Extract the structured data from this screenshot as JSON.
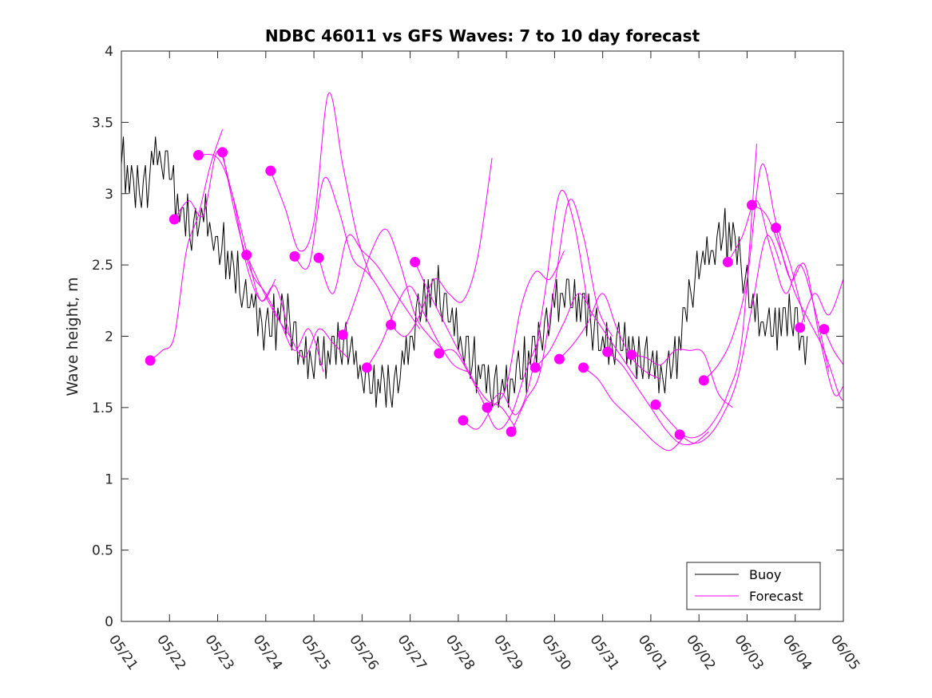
{
  "chart_data": {
    "type": "line",
    "title": "NDBC 46011 vs GFS Waves: 7 to 10 day forecast",
    "xlabel": "",
    "ylabel": "Wave height, m",
    "xlim": [
      0,
      15
    ],
    "ylim": [
      0,
      4
    ],
    "x_unit": "days from 05/21",
    "x_ticks": [
      0,
      1,
      2,
      3,
      4,
      5,
      6,
      7,
      8,
      9,
      10,
      11,
      12,
      13,
      14,
      15
    ],
    "x_tick_labels": [
      "05/21",
      "05/22",
      "05/23",
      "05/24",
      "05/25",
      "05/26",
      "05/27",
      "05/28",
      "05/29",
      "05/30",
      "05/31",
      "06/01",
      "06/02",
      "06/03",
      "06/04",
      "06/05"
    ],
    "y_ticks": [
      0,
      0.5,
      1,
      1.5,
      2,
      2.5,
      3,
      3.5,
      4
    ],
    "y_tick_labels": [
      "0",
      "0.5",
      "1",
      "1.5",
      "2",
      "2.5",
      "3",
      "3.5",
      "4"
    ],
    "legend_position": "bottom-right",
    "colors": {
      "buoy": "#000000",
      "forecast": "#ff00ff"
    },
    "buoy": {
      "name": "Buoy",
      "x": [
        0,
        0.25,
        0.5,
        0.75,
        1,
        1.25,
        1.5,
        1.75,
        2,
        2.25,
        2.5,
        2.75,
        3,
        3.25,
        3.5,
        3.75,
        4,
        4.25,
        4.5,
        4.75,
        5,
        5.25,
        5.5,
        5.75,
        6,
        6.25,
        6.5,
        6.75,
        7,
        7.25,
        7.5,
        7.75,
        8,
        8.25,
        8.5,
        8.75,
        9,
        9.25,
        9.5,
        9.75,
        10,
        10.25,
        10.5,
        10.75,
        11,
        11.25,
        11.5,
        11.75,
        12,
        12.25,
        12.5,
        12.75,
        13,
        13.25,
        13.5,
        13.75,
        14,
        14.25
      ],
      "y": [
        3.2,
        3.0,
        3.0,
        3.3,
        3.1,
        2.8,
        2.7,
        2.9,
        2.6,
        2.5,
        2.3,
        2.2,
        2.0,
        2.1,
        2.1,
        1.8,
        1.8,
        1.8,
        1.9,
        1.9,
        1.7,
        1.6,
        1.6,
        1.7,
        1.9,
        2.2,
        2.3,
        2.2,
        2.0,
        1.8,
        1.7,
        1.6,
        1.6,
        1.7,
        1.8,
        2.0,
        2.2,
        2.3,
        2.2,
        2.1,
        1.9,
        1.9,
        1.9,
        1.8,
        1.8,
        1.7,
        1.8,
        2.2,
        2.5,
        2.6,
        2.7,
        2.6,
        2.3,
        2.1,
        2.0,
        2.1,
        2.1,
        1.8
      ],
      "noise": [
        0,
        0.2,
        -0.15,
        0.1,
        -0.05,
        0.15,
        0.1,
        -0.1,
        0.2,
        0,
        -0.15,
        0.05,
        0.15,
        -0.1,
        0,
        0.1,
        -0.05,
        0.15,
        -0.1,
        0.05,
        0,
        -0.1,
        0.1,
        0.15,
        -0.05
      ]
    },
    "forecast_series": [
      {
        "name": "Forecast",
        "x": [
          0.6,
          0.85,
          1.1,
          1.35,
          1.6,
          1.85,
          2.1
        ],
        "y": [
          1.83,
          1.9,
          2.0,
          2.6,
          2.85,
          3.2,
          3.45
        ]
      },
      {
        "name": "",
        "x": [
          1.1,
          1.4,
          1.7,
          2.0,
          2.3,
          2.6,
          2.9,
          3.2
        ],
        "y": [
          2.82,
          2.95,
          2.85,
          3.3,
          3.0,
          2.6,
          2.25,
          2.4
        ]
      },
      {
        "name": "",
        "x": [
          1.6,
          2.0,
          2.3,
          2.6,
          2.9,
          3.2,
          3.5
        ],
        "y": [
          3.27,
          3.25,
          3.0,
          2.5,
          2.25,
          2.35,
          2.0
        ]
      },
      {
        "name": "",
        "x": [
          2.1,
          2.4,
          2.7,
          3.0,
          3.3,
          3.6,
          3.9,
          4.2
        ],
        "y": [
          3.29,
          2.8,
          2.45,
          2.3,
          2.1,
          1.9,
          2.05,
          1.75
        ]
      },
      {
        "name": "",
        "x": [
          2.6,
          2.9,
          3.2,
          3.5,
          3.8,
          4.1,
          4.4,
          4.7
        ],
        "y": [
          2.57,
          2.35,
          2.15,
          2.0,
          1.85,
          2.05,
          1.95,
          1.85
        ]
      },
      {
        "name": "",
        "x": [
          3.1,
          3.4,
          3.7,
          4.0,
          4.3,
          4.6,
          4.9,
          5.2
        ],
        "y": [
          3.16,
          2.9,
          2.6,
          2.8,
          3.7,
          3.2,
          2.7,
          2.4
        ]
      },
      {
        "name": "",
        "x": [
          3.6,
          3.9,
          4.2,
          4.5,
          4.8,
          5.1,
          5.4,
          5.7
        ],
        "y": [
          2.56,
          2.5,
          3.1,
          2.9,
          2.55,
          2.45,
          2.3,
          2.05
        ]
      },
      {
        "name": "",
        "x": [
          4.1,
          4.4,
          4.7,
          5.0,
          5.3,
          5.6,
          5.9,
          6.2
        ],
        "y": [
          2.55,
          2.3,
          2.7,
          2.6,
          2.5,
          2.35,
          2.2,
          2.05
        ]
      },
      {
        "name": "",
        "x": [
          4.6,
          4.9,
          5.2,
          5.5,
          5.8,
          6.1,
          6.4,
          6.7
        ],
        "y": [
          2.01,
          2.3,
          2.6,
          2.75,
          2.5,
          2.15,
          2.0,
          1.9
        ]
      },
      {
        "name": "",
        "x": [
          5.1,
          5.4,
          5.7,
          6.0,
          6.3,
          6.6,
          6.9,
          7.2
        ],
        "y": [
          1.78,
          1.95,
          2.2,
          2.35,
          2.15,
          1.95,
          1.8,
          1.75
        ]
      },
      {
        "name": "",
        "x": [
          5.6,
          5.9,
          6.2,
          6.5,
          6.8,
          7.1,
          7.4,
          7.7
        ],
        "y": [
          2.08,
          2.0,
          2.15,
          2.4,
          2.3,
          2.25,
          2.55,
          3.25
        ]
      },
      {
        "name": "",
        "x": [
          6.1,
          6.4,
          6.7,
          7.0,
          7.3,
          7.6,
          7.9,
          8.2
        ],
        "y": [
          2.52,
          2.3,
          2.1,
          1.9,
          1.7,
          1.55,
          1.5,
          1.35
        ]
      },
      {
        "name": "",
        "x": [
          6.6,
          6.9,
          7.2,
          7.5,
          7.8,
          8.1,
          8.4,
          8.7
        ],
        "y": [
          1.88,
          1.9,
          1.75,
          1.55,
          1.35,
          1.45,
          1.75,
          2.0
        ]
      },
      {
        "name": "",
        "x": [
          7.1,
          7.4,
          7.7,
          8.0,
          8.3,
          8.6,
          8.9,
          9.2
        ],
        "y": [
          1.41,
          1.35,
          1.5,
          1.65,
          2.2,
          2.45,
          2.4,
          2.6
        ]
      },
      {
        "name": "",
        "x": [
          7.6,
          7.9,
          8.2,
          8.5,
          8.8,
          9.1,
          9.4,
          9.7
        ],
        "y": [
          1.5,
          1.6,
          1.45,
          1.7,
          2.3,
          3.0,
          2.8,
          2.2
        ]
      },
      {
        "name": "",
        "x": [
          8.1,
          8.4,
          8.7,
          9.0,
          9.3,
          9.6,
          9.9,
          10.2
        ],
        "y": [
          1.33,
          1.55,
          1.75,
          2.35,
          2.95,
          2.7,
          2.2,
          2.0
        ]
      },
      {
        "name": "",
        "x": [
          8.6,
          8.9,
          9.2,
          9.5,
          9.8,
          10.1,
          10.4,
          10.7
        ],
        "y": [
          1.78,
          1.9,
          2.1,
          2.3,
          2.15,
          2.0,
          1.85,
          1.7
        ]
      },
      {
        "name": "",
        "x": [
          9.1,
          9.4,
          9.7,
          10.0,
          10.3,
          10.6,
          10.9,
          11.2
        ],
        "y": [
          1.84,
          1.95,
          2.1,
          2.3,
          2.05,
          1.85,
          1.75,
          1.7
        ]
      },
      {
        "name": "",
        "x": [
          9.6,
          9.9,
          10.2,
          10.5,
          10.8,
          11.1,
          11.4,
          11.7
        ],
        "y": [
          1.78,
          1.7,
          1.55,
          1.45,
          1.35,
          1.25,
          1.2,
          1.3
        ]
      },
      {
        "name": "",
        "x": [
          10.1,
          10.4,
          10.7,
          11.0,
          11.3,
          11.6,
          11.9,
          12.2
        ],
        "y": [
          1.89,
          1.8,
          1.65,
          1.5,
          1.35,
          1.25,
          1.25,
          1.33
        ]
      },
      {
        "name": "",
        "x": [
          10.6,
          10.9,
          11.2,
          11.5,
          11.8,
          12.1,
          12.4,
          12.7
        ],
        "y": [
          1.87,
          1.85,
          1.8,
          1.9,
          1.9,
          1.88,
          1.6,
          1.5
        ]
      },
      {
        "name": "",
        "x": [
          11.1,
          11.4,
          11.7,
          12.0,
          12.3,
          12.6,
          12.9,
          13.2
        ],
        "y": [
          1.52,
          1.4,
          1.3,
          1.3,
          1.4,
          1.6,
          2.0,
          3.35
        ]
      },
      {
        "name": "",
        "x": [
          11.6,
          11.9,
          12.2,
          12.5,
          12.8,
          13.1,
          13.4,
          13.7
        ],
        "y": [
          1.31,
          1.25,
          1.3,
          1.45,
          1.7,
          2.2,
          2.7,
          2.5
        ]
      },
      {
        "name": "",
        "x": [
          12.1,
          12.4,
          12.7,
          13.0,
          13.3,
          13.6,
          13.9,
          14.2
        ],
        "y": [
          1.69,
          1.8,
          2.0,
          2.4,
          3.2,
          2.8,
          2.5,
          2.1
        ]
      },
      {
        "name": "",
        "x": [
          12.6,
          12.9,
          13.2,
          13.5,
          13.8,
          14.1,
          14.4,
          14.7
        ],
        "y": [
          2.52,
          2.7,
          2.95,
          2.6,
          2.3,
          2.5,
          2.2,
          1.75
        ]
      },
      {
        "name": "",
        "x": [
          13.1,
          13.4,
          13.7,
          14.0,
          14.3,
          14.6,
          14.9,
          15.0
        ],
        "y": [
          2.92,
          2.85,
          2.6,
          2.3,
          2.1,
          1.9,
          1.6,
          1.55
        ]
      },
      {
        "name": "",
        "x": [
          13.6,
          13.9,
          14.2,
          14.5,
          14.8,
          15.0
        ],
        "y": [
          2.76,
          2.4,
          2.5,
          2.0,
          1.6,
          1.65
        ]
      },
      {
        "name": "",
        "x": [
          14.1,
          14.4,
          14.7,
          15.0
        ],
        "y": [
          2.06,
          2.3,
          2.15,
          2.4
        ]
      },
      {
        "name": "",
        "x": [
          14.6,
          14.8,
          15.0
        ],
        "y": [
          2.05,
          1.9,
          1.8
        ]
      }
    ],
    "forecast_points": {
      "x": [
        0.6,
        1.1,
        1.6,
        2.1,
        2.6,
        3.1,
        3.6,
        4.1,
        4.6,
        5.1,
        5.6,
        6.1,
        6.6,
        7.1,
        7.6,
        8.1,
        8.6,
        9.1,
        9.6,
        10.1,
        10.6,
        11.1,
        11.6,
        12.1,
        12.6,
        13.1,
        13.6,
        14.1,
        14.6
      ],
      "y": [
        1.83,
        2.82,
        3.27,
        3.29,
        2.57,
        3.16,
        2.56,
        2.55,
        2.01,
        1.78,
        2.08,
        2.52,
        1.88,
        1.41,
        1.5,
        1.33,
        1.78,
        1.84,
        1.78,
        1.89,
        1.87,
        1.52,
        1.31,
        1.69,
        2.52,
        2.92,
        2.76,
        2.06,
        2.05
      ]
    },
    "legend": [
      {
        "name": "Buoy",
        "color": "#000000"
      },
      {
        "name": "Forecast",
        "color": "#ff00ff"
      }
    ]
  }
}
